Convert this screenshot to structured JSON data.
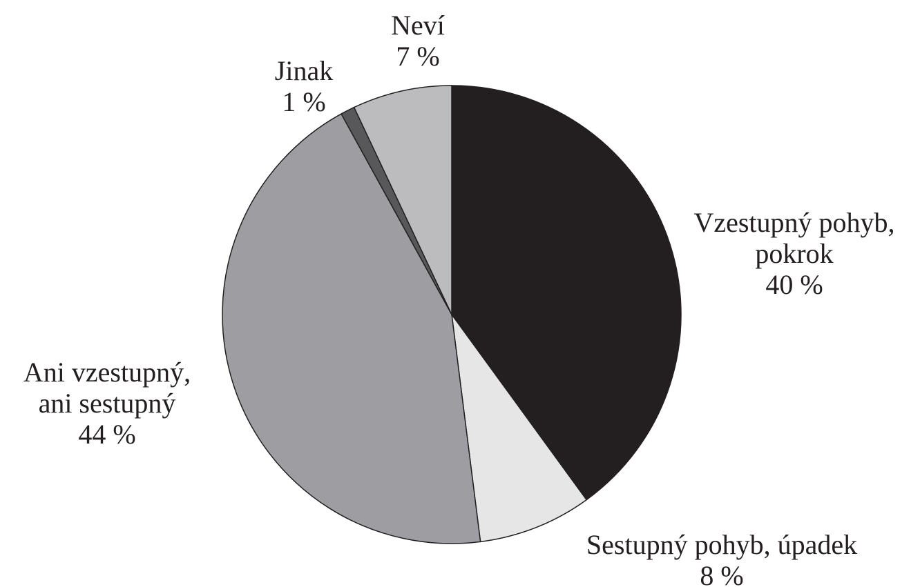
{
  "chart_data": {
    "type": "pie",
    "categories": [
      "Vzestupný pohyb, pokrok",
      "Sestupný pohyb, úpadek",
      "Ani vzestupný, ani sestupný",
      "Jinak",
      "Neví"
    ],
    "values": [
      40,
      8,
      44,
      1,
      7
    ],
    "value_labels": [
      "40 %",
      "8 %",
      "44 %",
      "1 %",
      "7 %"
    ],
    "colors": [
      "#231f20",
      "#e6e6e7",
      "#9d9da2",
      "#58585b",
      "#bcbcbf"
    ]
  }
}
